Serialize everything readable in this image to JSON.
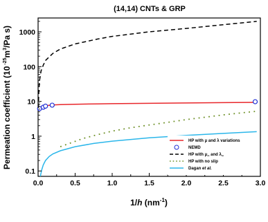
{
  "chart_data": {
    "type": "line",
    "title": "(14,14) CNTs & GRP",
    "xlabel_parts": [
      "1/",
      "h",
      " (nm",
      "-1",
      ")"
    ],
    "ylabel_parts": [
      "Permeation coefficient (10",
      " -25",
      "m",
      "3",
      "/Pa s)"
    ],
    "xlim": [
      0,
      3.0
    ],
    "ylim": [
      0.07,
      2500
    ],
    "yscale": "log",
    "grid": false,
    "legend_position": "bottom-right",
    "xticks": [
      0.0,
      0.5,
      1.0,
      1.5,
      2.0,
      2.5,
      3.0
    ],
    "xtick_labels": [
      "0.0",
      "0.5",
      "1.0",
      "1.5",
      "2.0",
      "2.5",
      "3.0"
    ],
    "yticks": [
      0.1,
      1,
      10,
      100,
      1000
    ],
    "ytick_labels": [
      "0.1",
      "1",
      "10",
      "100",
      "1000"
    ],
    "series": [
      {
        "name": "HP with μ and λ variations",
        "legend_parts": [
          "HP with ",
          "μ",
          " and ",
          "λ",
          " variations"
        ],
        "style": "solid",
        "color": "#e8262a",
        "x": [
          0.01,
          0.02,
          0.04,
          0.07,
          0.1,
          0.15,
          0.2,
          0.3,
          0.5,
          0.8,
          1.0,
          1.5,
          2.0,
          2.5,
          2.95
        ],
        "y": [
          6.2,
          6.6,
          7.0,
          7.3,
          7.5,
          7.7,
          7.9,
          8.1,
          8.3,
          8.5,
          8.6,
          8.8,
          9.0,
          9.2,
          9.4
        ]
      },
      {
        "name": "NEMD",
        "legend_parts": [
          "NEMD"
        ],
        "style": "marker",
        "color": "#1f2fd6",
        "x": [
          0.02,
          0.07,
          0.1,
          0.19,
          2.93
        ],
        "y": [
          6.2,
          6.8,
          7.3,
          7.8,
          9.8
        ]
      },
      {
        "name": "HP with μ∞ and λ∞",
        "legend_parts": [
          "HP with ",
          "μ",
          "∞",
          " and ",
          "λ",
          "∞"
        ],
        "style": "dashed",
        "color": "#000000",
        "x": [
          0.003,
          0.01,
          0.02,
          0.04,
          0.07,
          0.1,
          0.15,
          0.2,
          0.3,
          0.5,
          0.8,
          1.0,
          1.5,
          2.0,
          2.5,
          2.95
        ],
        "y": [
          6.5,
          20,
          40,
          75,
          110,
          150,
          190,
          240,
          320,
          450,
          620,
          740,
          1000,
          1250,
          1600,
          2000
        ]
      },
      {
        "name": "HP with no slip",
        "legend_parts": [
          "HP with no slip"
        ],
        "style": "dotted",
        "color": "#6b8e23",
        "x": [
          0.3,
          0.45,
          0.6,
          0.8,
          1.0,
          1.25,
          1.5,
          1.75,
          2.0,
          2.25,
          2.5,
          2.75,
          2.95
        ],
        "y": [
          0.5,
          0.65,
          0.85,
          1.1,
          1.4,
          1.75,
          2.1,
          2.5,
          3.0,
          3.5,
          4.1,
          4.7,
          5.2
        ]
      },
      {
        "name": "Dagan et al.",
        "legend_parts": [
          "Dagan ",
          "et al."
        ],
        "style": "solid",
        "color": "#2ab6ea",
        "x": [
          0.03,
          0.05,
          0.07,
          0.1,
          0.15,
          0.2,
          0.3,
          0.5,
          0.75,
          1.0,
          1.5,
          2.0,
          2.5,
          2.95
        ],
        "y": [
          0.07,
          0.11,
          0.15,
          0.2,
          0.26,
          0.31,
          0.38,
          0.5,
          0.62,
          0.72,
          0.9,
          1.05,
          1.2,
          1.35
        ]
      }
    ]
  }
}
